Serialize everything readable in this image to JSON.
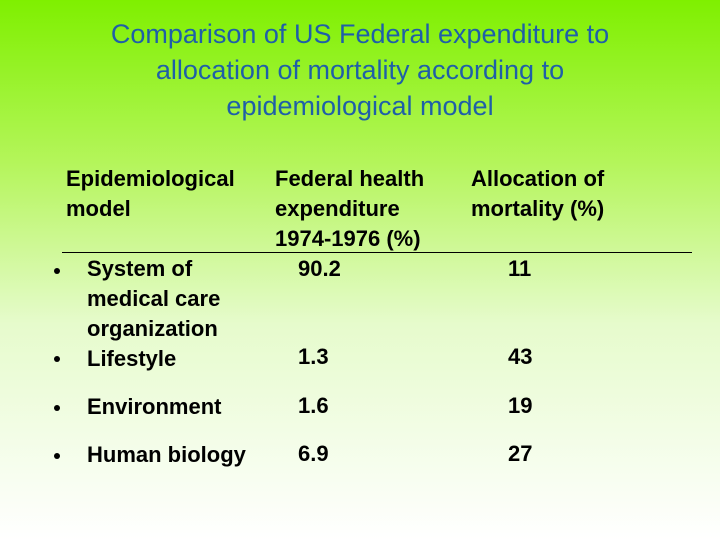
{
  "title": {
    "line1": "Comparison of US Federal expenditure to",
    "line2": "allocation of mortality according to",
    "line3": "epidemiological model"
  },
  "table": {
    "headers": [
      {
        "lines": [
          "Epidemiological",
          "model"
        ]
      },
      {
        "lines": [
          "Federal health",
          "expenditure",
          "1974-1976 (%)"
        ]
      },
      {
        "lines": [
          "Allocation of",
          "mortality (%)"
        ]
      }
    ],
    "rows": [
      {
        "label_lines": [
          "System of",
          "medical care",
          "organization"
        ],
        "expenditure": "90.2",
        "mortality": "11"
      },
      {
        "label_lines": [
          "Lifestyle"
        ],
        "expenditure": "1.3",
        "mortality": "43"
      },
      {
        "label_lines": [
          "Environment"
        ],
        "expenditure": "1.6",
        "mortality": "19"
      },
      {
        "label_lines": [
          "Human biology"
        ],
        "expenditure": "6.9",
        "mortality": "27"
      }
    ]
  }
}
